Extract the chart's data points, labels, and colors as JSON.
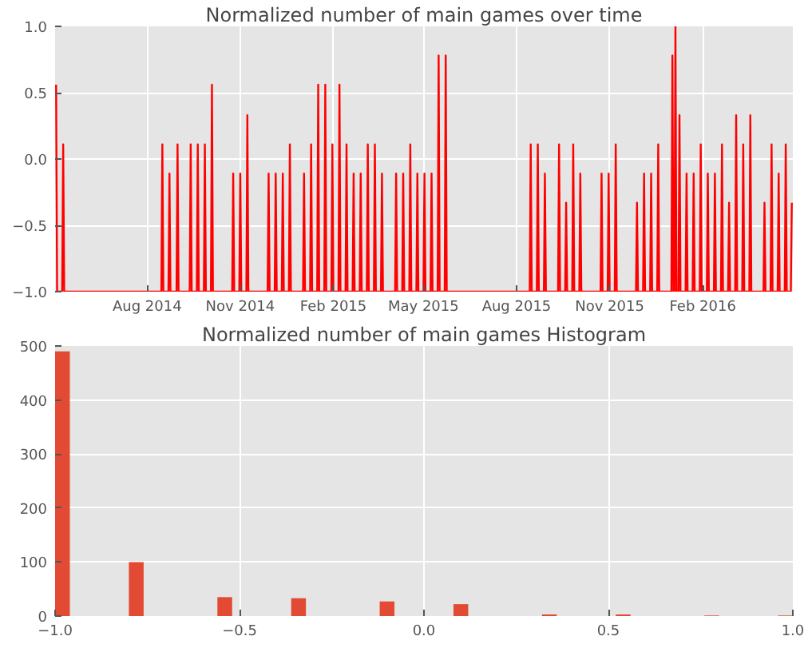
{
  "chart_data": [
    {
      "type": "line",
      "title": "Normalized number of main games over time",
      "color": "#ff0000",
      "grid": true,
      "line_style": "solid",
      "x": [
        "2014-05-03",
        "2014-05-04",
        "2014-05-09",
        "2014-05-10",
        "2014-05-11",
        "2014-08-15",
        "2014-08-16",
        "2014-08-17",
        "2014-08-22",
        "2014-08-23",
        "2014-08-24",
        "2014-08-30",
        "2014-08-31",
        "2014-09-01",
        "2014-09-12",
        "2014-09-13",
        "2014-09-14",
        "2014-09-19",
        "2014-09-20",
        "2014-09-21",
        "2014-09-26",
        "2014-09-27",
        "2014-09-28",
        "2014-10-03",
        "2014-10-04",
        "2014-10-05",
        "2014-10-24",
        "2014-10-25",
        "2014-10-26",
        "2014-10-31",
        "2014-11-01",
        "2014-11-02",
        "2014-11-07",
        "2014-11-08",
        "2014-11-09",
        "2014-11-28",
        "2014-11-29",
        "2014-11-30",
        "2014-12-05",
        "2014-12-06",
        "2014-12-07",
        "2014-12-12",
        "2014-12-13",
        "2014-12-14",
        "2014-12-19",
        "2014-12-20",
        "2014-12-21",
        "2015-01-02",
        "2015-01-03",
        "2015-01-04",
        "2015-01-09",
        "2015-01-10",
        "2015-01-11",
        "2015-01-16",
        "2015-01-17",
        "2015-01-18",
        "2015-01-23",
        "2015-01-24",
        "2015-01-25",
        "2015-01-30",
        "2015-01-31",
        "2015-02-01",
        "2015-02-06",
        "2015-02-07",
        "2015-02-08",
        "2015-02-13",
        "2015-02-14",
        "2015-02-15",
        "2015-02-20",
        "2015-02-21",
        "2015-02-22",
        "2015-02-27",
        "2015-02-28",
        "2015-03-01",
        "2015-03-06",
        "2015-03-07",
        "2015-03-08",
        "2015-03-13",
        "2015-03-14",
        "2015-03-15",
        "2015-03-20",
        "2015-03-21",
        "2015-03-22",
        "2015-04-03",
        "2015-04-04",
        "2015-04-05",
        "2015-04-10",
        "2015-04-11",
        "2015-04-12",
        "2015-04-17",
        "2015-04-18",
        "2015-04-19",
        "2015-04-24",
        "2015-04-25",
        "2015-04-26",
        "2015-05-01",
        "2015-05-02",
        "2015-05-03",
        "2015-05-08",
        "2015-05-09",
        "2015-05-10",
        "2015-05-15",
        "2015-05-16",
        "2015-05-17",
        "2015-05-22",
        "2015-05-23",
        "2015-05-24",
        "2015-08-14",
        "2015-08-15",
        "2015-08-16",
        "2015-08-21",
        "2015-08-22",
        "2015-08-23",
        "2015-08-28",
        "2015-08-29",
        "2015-08-30",
        "2015-09-11",
        "2015-09-12",
        "2015-09-13",
        "2015-09-18",
        "2015-09-19",
        "2015-09-20",
        "2015-09-25",
        "2015-09-26",
        "2015-09-27",
        "2015-10-02",
        "2015-10-03",
        "2015-10-04",
        "2015-10-23",
        "2015-10-24",
        "2015-10-25",
        "2015-10-30",
        "2015-10-31",
        "2015-11-01",
        "2015-11-06",
        "2015-11-07",
        "2015-11-08",
        "2015-11-27",
        "2015-11-28",
        "2015-11-29",
        "2015-12-04",
        "2015-12-05",
        "2015-12-06",
        "2015-12-11",
        "2015-12-12",
        "2015-12-13",
        "2015-12-18",
        "2015-12-19",
        "2015-12-20",
        "2016-01-01",
        "2016-01-02",
        "2016-01-03",
        "2016-01-04",
        "2016-01-05",
        "2016-01-06",
        "2016-01-08",
        "2016-01-09",
        "2016-01-10",
        "2016-01-15",
        "2016-01-16",
        "2016-01-17",
        "2016-01-22",
        "2016-01-23",
        "2016-01-24",
        "2016-01-29",
        "2016-01-30",
        "2016-01-31",
        "2016-02-05",
        "2016-02-06",
        "2016-02-07",
        "2016-02-12",
        "2016-02-13",
        "2016-02-14",
        "2016-02-19",
        "2016-02-20",
        "2016-02-21",
        "2016-02-26",
        "2016-02-27",
        "2016-02-28",
        "2016-03-04",
        "2016-03-05",
        "2016-03-06",
        "2016-03-11",
        "2016-03-12",
        "2016-03-13",
        "2016-03-18",
        "2016-03-19",
        "2016-03-20",
        "2016-04-01",
        "2016-04-02",
        "2016-04-03",
        "2016-04-08",
        "2016-04-09",
        "2016-04-10",
        "2016-04-15",
        "2016-04-16",
        "2016-04-17",
        "2016-04-22",
        "2016-04-23",
        "2016-04-24",
        "2016-04-28",
        "2016-04-29"
      ],
      "values": [
        0.56,
        -1,
        -1,
        0.11,
        -1,
        -1,
        0.11,
        -1,
        -1,
        -0.11,
        -1,
        -1,
        0.11,
        -1,
        -1,
        0.11,
        -1,
        -1,
        0.11,
        -1,
        -1,
        0.11,
        -1,
        -1,
        0.56,
        -1,
        -1,
        -0.11,
        -1,
        -1,
        -0.11,
        -1,
        -1,
        0.33,
        -1,
        -1,
        -0.11,
        -1,
        -1,
        -0.11,
        -1,
        -1,
        -0.11,
        -1,
        -1,
        0.11,
        -1,
        -1,
        -0.11,
        -1,
        -1,
        0.11,
        -1,
        -1,
        0.56,
        -1,
        -1,
        0.56,
        -1,
        -1,
        0.11,
        -1,
        -1,
        0.56,
        -1,
        -1,
        0.11,
        -1,
        -1,
        -0.11,
        -1,
        -1,
        -0.11,
        -1,
        -1,
        0.11,
        -1,
        -1,
        0.11,
        -1,
        -1,
        -0.11,
        -1,
        -1,
        -0.11,
        -1,
        -1,
        -0.11,
        -1,
        -1,
        0.11,
        -1,
        -1,
        -0.11,
        -1,
        -1,
        -0.11,
        -1,
        -1,
        -0.11,
        -1,
        -1,
        0.78,
        -1,
        -1,
        0.78,
        -1,
        -1,
        0.11,
        -1,
        -1,
        0.11,
        -1,
        -1,
        -0.11,
        -1,
        -1,
        0.11,
        -1,
        -1,
        -0.33,
        -1,
        -1,
        0.11,
        -1,
        -1,
        -0.11,
        -1,
        -1,
        -0.11,
        -1,
        -1,
        -0.11,
        -1,
        -1,
        0.11,
        -1,
        -1,
        -0.33,
        -1,
        -1,
        -0.11,
        -1,
        -1,
        -0.11,
        -1,
        -1,
        0.11,
        -1,
        -1,
        0.78,
        -1,
        -1,
        1.0,
        -1,
        -1,
        0.33,
        -1,
        -1,
        -0.11,
        -1,
        -1,
        -0.11,
        -1,
        -1,
        0.11,
        -1,
        -1,
        -0.11,
        -1,
        -1,
        -0.11,
        -1,
        -1,
        0.11,
        -1,
        -1,
        -0.33,
        -1,
        -1,
        0.33,
        -1,
        -1,
        0.11,
        -1,
        -1,
        0.33,
        -1,
        -1,
        -0.33,
        -1,
        -1,
        0.11,
        -1,
        -1,
        -0.11,
        -1,
        -1,
        0.11,
        -1,
        -1,
        -0.33
      ],
      "xlim": [
        "2014-05-02",
        "2016-04-30"
      ],
      "xticks": [
        {
          "value": "2014-08-01",
          "label": "Aug 2014"
        },
        {
          "value": "2014-11-01",
          "label": "Nov 2014"
        },
        {
          "value": "2015-02-01",
          "label": "Feb 2015"
        },
        {
          "value": "2015-05-01",
          "label": "May 2015"
        },
        {
          "value": "2015-08-01",
          "label": "Aug 2015"
        },
        {
          "value": "2015-11-01",
          "label": "Nov 2015"
        },
        {
          "value": "2016-02-01",
          "label": "Feb 2016"
        }
      ],
      "ylim": [
        -1.0,
        1.0
      ],
      "yticks": [
        {
          "value": -1.0,
          "label": "−1.0"
        },
        {
          "value": -0.5,
          "label": "−0.5"
        },
        {
          "value": 0.0,
          "label": "0.0"
        },
        {
          "value": 0.5,
          "label": "0.5"
        },
        {
          "value": 1.0,
          "label": "1.0"
        }
      ]
    },
    {
      "type": "histogram",
      "title": "Normalized number of main games Histogram",
      "color": "#e24a33",
      "grid": true,
      "bins": [
        -1.0,
        -0.96,
        -0.92,
        -0.88,
        -0.84,
        -0.8,
        -0.76,
        -0.72,
        -0.68,
        -0.64,
        -0.6,
        -0.56,
        -0.52,
        -0.48,
        -0.44,
        -0.4,
        -0.36,
        -0.32,
        -0.28,
        -0.24,
        -0.2,
        -0.16,
        -0.12,
        -0.08,
        -0.04,
        0.0,
        0.04,
        0.08,
        0.12,
        0.16,
        0.2,
        0.24,
        0.28,
        0.32,
        0.36,
        0.4,
        0.44,
        0.48,
        0.52,
        0.56,
        0.6,
        0.64,
        0.68,
        0.72,
        0.76,
        0.8,
        0.84,
        0.88,
        0.92,
        0.96,
        1.0
      ],
      "values": [
        490,
        0,
        0,
        0,
        0,
        100,
        0,
        0,
        0,
        0,
        0,
        35,
        0,
        0,
        0,
        0,
        33,
        0,
        0,
        0,
        0,
        0,
        27,
        0,
        0,
        0,
        0,
        22,
        0,
        0,
        0,
        0,
        0,
        3,
        0,
        0,
        0,
        0,
        3,
        0,
        0,
        0,
        0,
        0,
        1,
        0,
        0,
        0,
        0,
        1
      ],
      "xlim": [
        -1.0,
        1.0
      ],
      "xticks": [
        {
          "value": -1.0,
          "label": "−1.0"
        },
        {
          "value": -0.5,
          "label": "−0.5"
        },
        {
          "value": 0.0,
          "label": "0.0"
        },
        {
          "value": 0.5,
          "label": "0.5"
        },
        {
          "value": 1.0,
          "label": "1.0"
        }
      ],
      "ylim": [
        0,
        500
      ],
      "yticks": [
        0,
        100,
        200,
        300,
        400,
        500
      ]
    }
  ]
}
